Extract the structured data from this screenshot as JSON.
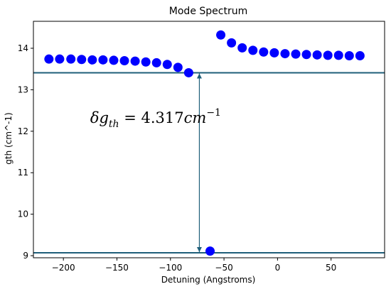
{
  "chart_data": {
    "type": "scatter",
    "title": "Mode Spectrum",
    "xlabel": "Detuning (Angstroms)",
    "ylabel": "gth (cm^-1)",
    "xlim": [
      -228,
      100
    ],
    "ylim": [
      8.95,
      14.65
    ],
    "xticks": [
      -200,
      -150,
      -100,
      -50,
      0,
      50
    ],
    "xtick_labels": [
      "−200",
      "−150",
      "−100",
      "−50",
      "0",
      "50"
    ],
    "yticks": [
      9,
      10,
      11,
      12,
      13,
      14
    ],
    "ytick_labels": [
      "9",
      "10",
      "11",
      "12",
      "13",
      "14"
    ],
    "grid": false,
    "marker_color": "#0000ff",
    "line_color": "#1f5f7a",
    "series": [
      {
        "x": [
          -213.5,
          -203.5,
          -193,
          -183,
          -173,
          -163,
          -153,
          -143,
          -133,
          -123,
          -113,
          -103,
          -93,
          -83,
          -63,
          -53,
          -43,
          -33,
          -23,
          -13,
          -3,
          7,
          17,
          27,
          37,
          47,
          57,
          67,
          77
        ],
        "values": [
          13.74,
          13.74,
          13.74,
          13.73,
          13.72,
          13.72,
          13.71,
          13.7,
          13.69,
          13.67,
          13.65,
          13.61,
          13.54,
          13.41,
          9.11,
          14.32,
          14.13,
          14.01,
          13.95,
          13.91,
          13.89,
          13.87,
          13.86,
          13.85,
          13.84,
          13.83,
          13.83,
          13.82,
          13.82
        ]
      }
    ],
    "hlines": [
      13.41,
      9.07
    ],
    "arrow": {
      "x": -73,
      "from": 13.41,
      "to": 9.07
    },
    "annotation": {
      "prefix": "δg",
      "subscript": "th",
      "equals": " = 4.317",
      "unit": "cm",
      "superscript": "−1",
      "x": -175,
      "y": 12.2
    }
  }
}
